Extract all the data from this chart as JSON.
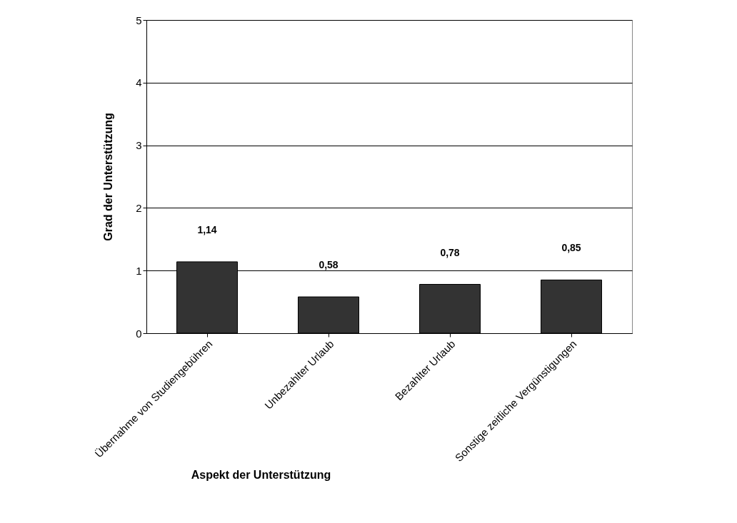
{
  "chart_data": {
    "type": "bar",
    "xlabel": "Aspekt der Unterstützung",
    "ylabel": "Grad der Unterstützung",
    "categories": [
      "Übernahme von Studiengebühren",
      "Unbezahlter Urlaub",
      "Bezahlter Urlaub",
      "Sonstige zeitliche Vergünstigungen"
    ],
    "values": [
      1.14,
      0.58,
      0.78,
      0.85
    ],
    "value_labels": [
      "1,14",
      "0,58",
      "0,78",
      "0,85"
    ],
    "color": "#333333",
    "ylim": [
      0,
      5
    ],
    "yticks": [
      0,
      1,
      2,
      3,
      4,
      5
    ],
    "grid": "y"
  }
}
